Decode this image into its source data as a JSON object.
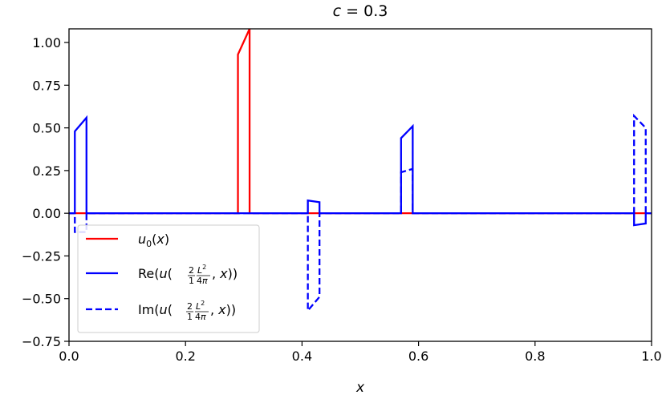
{
  "chart_data": {
    "type": "line",
    "title": "c = 0.3",
    "xlabel": "x",
    "ylabel": "",
    "xlim": [
      0.0,
      1.0
    ],
    "ylim": [
      -0.75,
      1.08
    ],
    "xticks": [
      "0.0",
      "0.2",
      "0.4",
      "0.6",
      "0.8",
      "1.0"
    ],
    "yticks": [
      "1.00",
      "0.75",
      "0.50",
      "0.25",
      "0.00",
      "−0.25",
      "−0.50",
      "−0.75"
    ],
    "legend": {
      "position": "lower left",
      "entries": [
        "u₀(x)",
        "Re(u(2/1 L²/4π, x))",
        "Im(u(2/1 L²/4π, x))"
      ]
    },
    "series": [
      {
        "name": "u₀(x)",
        "color": "#ff0000",
        "style": "solid",
        "x": [
          0.0,
          0.29,
          0.29,
          0.31,
          0.31,
          1.0
        ],
        "y": [
          0.0,
          0.0,
          0.93,
          1.08,
          0.0,
          0.0
        ]
      },
      {
        "name": "Re(u(2/1 L²/4π, x))",
        "color": "#0000ff",
        "style": "solid",
        "x": [
          0.0,
          0.01,
          0.01,
          0.03,
          0.03,
          0.41,
          0.41,
          0.43,
          0.43,
          0.57,
          0.57,
          0.59,
          0.59,
          0.97,
          0.97,
          0.99,
          0.99,
          1.0
        ],
        "y": [
          0.0,
          0.0,
          0.48,
          0.56,
          0.0,
          0.0,
          0.075,
          0.065,
          0.0,
          0.0,
          0.44,
          0.51,
          0.0,
          0.0,
          -0.07,
          -0.06,
          0.0,
          0.0
        ]
      },
      {
        "name": "Im(u(2/1 L²/4π, x))",
        "color": "#0000ff",
        "style": "dashed",
        "x": [
          0.0,
          0.01,
          0.01,
          0.03,
          0.03,
          0.41,
          0.41,
          0.43,
          0.43,
          0.57,
          0.57,
          0.59,
          0.59,
          0.97,
          0.97,
          0.99,
          0.99,
          1.0
        ],
        "y": [
          0.0,
          0.0,
          -0.11,
          -0.11,
          0.0,
          0.0,
          -0.57,
          -0.49,
          0.0,
          0.0,
          0.24,
          0.26,
          0.0,
          0.0,
          0.57,
          0.5,
          0.0,
          0.0
        ]
      }
    ]
  }
}
